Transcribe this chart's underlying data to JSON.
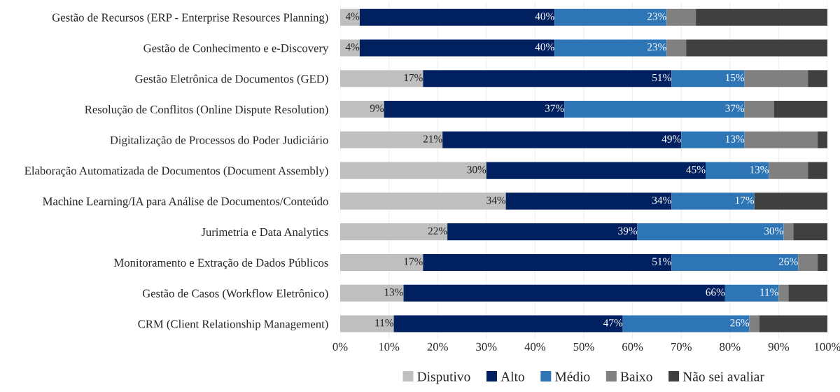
{
  "chart_data": {
    "type": "bar",
    "orientation": "horizontal",
    "stacked": true,
    "categories": [
      "Gestão de Recursos (ERP - Enterprise Resources Planning)",
      "Gestão de Conhecimento e e-Discovery",
      "Gestão Eletrônica de Documentos (GED)",
      "Resolução de Conflitos (Online Dispute Resolution)",
      "Digitalização de Processos do Poder Judiciário",
      "Elaboração Automatizada de Documentos (Document Assembly)",
      "Machine Learning/IA para Análise de Documentos/Conteúdo",
      "Jurimetria e Data Analytics",
      "Monitoramento e Extração de Dados Públicos",
      "Gestão de Casos (Workflow Eletrônico)",
      "CRM (Client Relationship Management)"
    ],
    "series": [
      {
        "name": "Disputivo",
        "color": "#bfbfbf",
        "values": [
          4,
          4,
          17,
          9,
          21,
          30,
          34,
          22,
          17,
          13,
          11
        ],
        "value_labels": [
          "4%",
          "4%",
          "17%",
          "9%",
          "21%",
          "30%",
          "34%",
          "22%",
          "17%",
          "13%",
          "11%"
        ]
      },
      {
        "name": "Alto",
        "color": "#002060",
        "values": [
          40,
          40,
          51,
          37,
          49,
          45,
          34,
          39,
          51,
          66,
          47
        ],
        "value_labels": [
          "40%",
          "40%",
          "51%",
          "37%",
          "49%",
          "45%",
          "34%",
          "39%",
          "51%",
          "66%",
          "47%"
        ]
      },
      {
        "name": "Médio",
        "color": "#2e75b6",
        "values": [
          23,
          23,
          15,
          37,
          13,
          13,
          17,
          30,
          26,
          11,
          26
        ],
        "value_labels": [
          "23%",
          "23%",
          "15%",
          "37%",
          "13%",
          "13%",
          "17%",
          "30%",
          "26%",
          "11%",
          "26%"
        ]
      },
      {
        "name": "Baixo",
        "color": "#808080",
        "values": [
          6,
          4,
          13,
          6,
          15,
          8,
          0,
          2,
          4,
          2,
          2
        ]
      },
      {
        "name": "Não sei avaliar",
        "color": "#404040",
        "values": [
          27,
          29,
          4,
          11,
          2,
          4,
          15,
          7,
          2,
          8,
          14
        ]
      }
    ],
    "xlim": [
      0,
      100
    ],
    "xticks": [
      {
        "value": 0,
        "label": "0%"
      },
      {
        "value": 10,
        "label": "10%"
      },
      {
        "value": 20,
        "label": "20%"
      },
      {
        "value": 30,
        "label": "30%"
      },
      {
        "value": 40,
        "label": "40%"
      },
      {
        "value": 50,
        "label": "50%"
      },
      {
        "value": 60,
        "label": "60%"
      },
      {
        "value": 70,
        "label": "70%"
      },
      {
        "value": 80,
        "label": "80%"
      },
      {
        "value": 90,
        "label": "90%"
      },
      {
        "value": 100,
        "label": "100%"
      }
    ],
    "grid": "x",
    "legend": "bottom"
  }
}
